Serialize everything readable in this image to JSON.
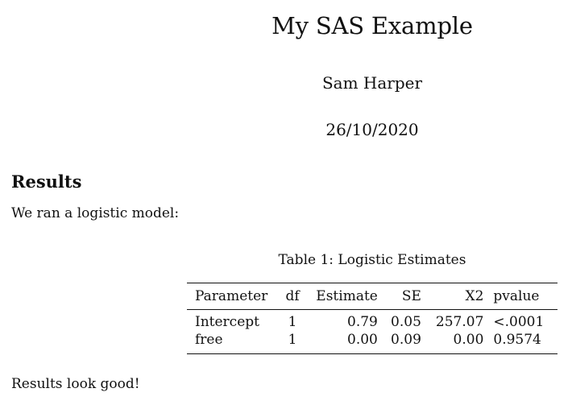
{
  "document": {
    "title": "My SAS Example",
    "author": "Sam Harper",
    "date": "26/10/2020"
  },
  "section": {
    "heading": "Results",
    "paragraph_intro": "We ran a logistic model:",
    "paragraph_outro": "Results look good!"
  },
  "table": {
    "caption": "Table 1: Logistic Estimates",
    "headers": [
      "Parameter",
      "df",
      "Estimate",
      "SE",
      "X2",
      "pvalue"
    ],
    "rows": [
      [
        "Intercept",
        "1",
        "0.79",
        "0.05",
        "257.07",
        "<.0001"
      ],
      [
        "free",
        "1",
        "0.00",
        "0.09",
        "0.00",
        "0.9574"
      ]
    ]
  }
}
